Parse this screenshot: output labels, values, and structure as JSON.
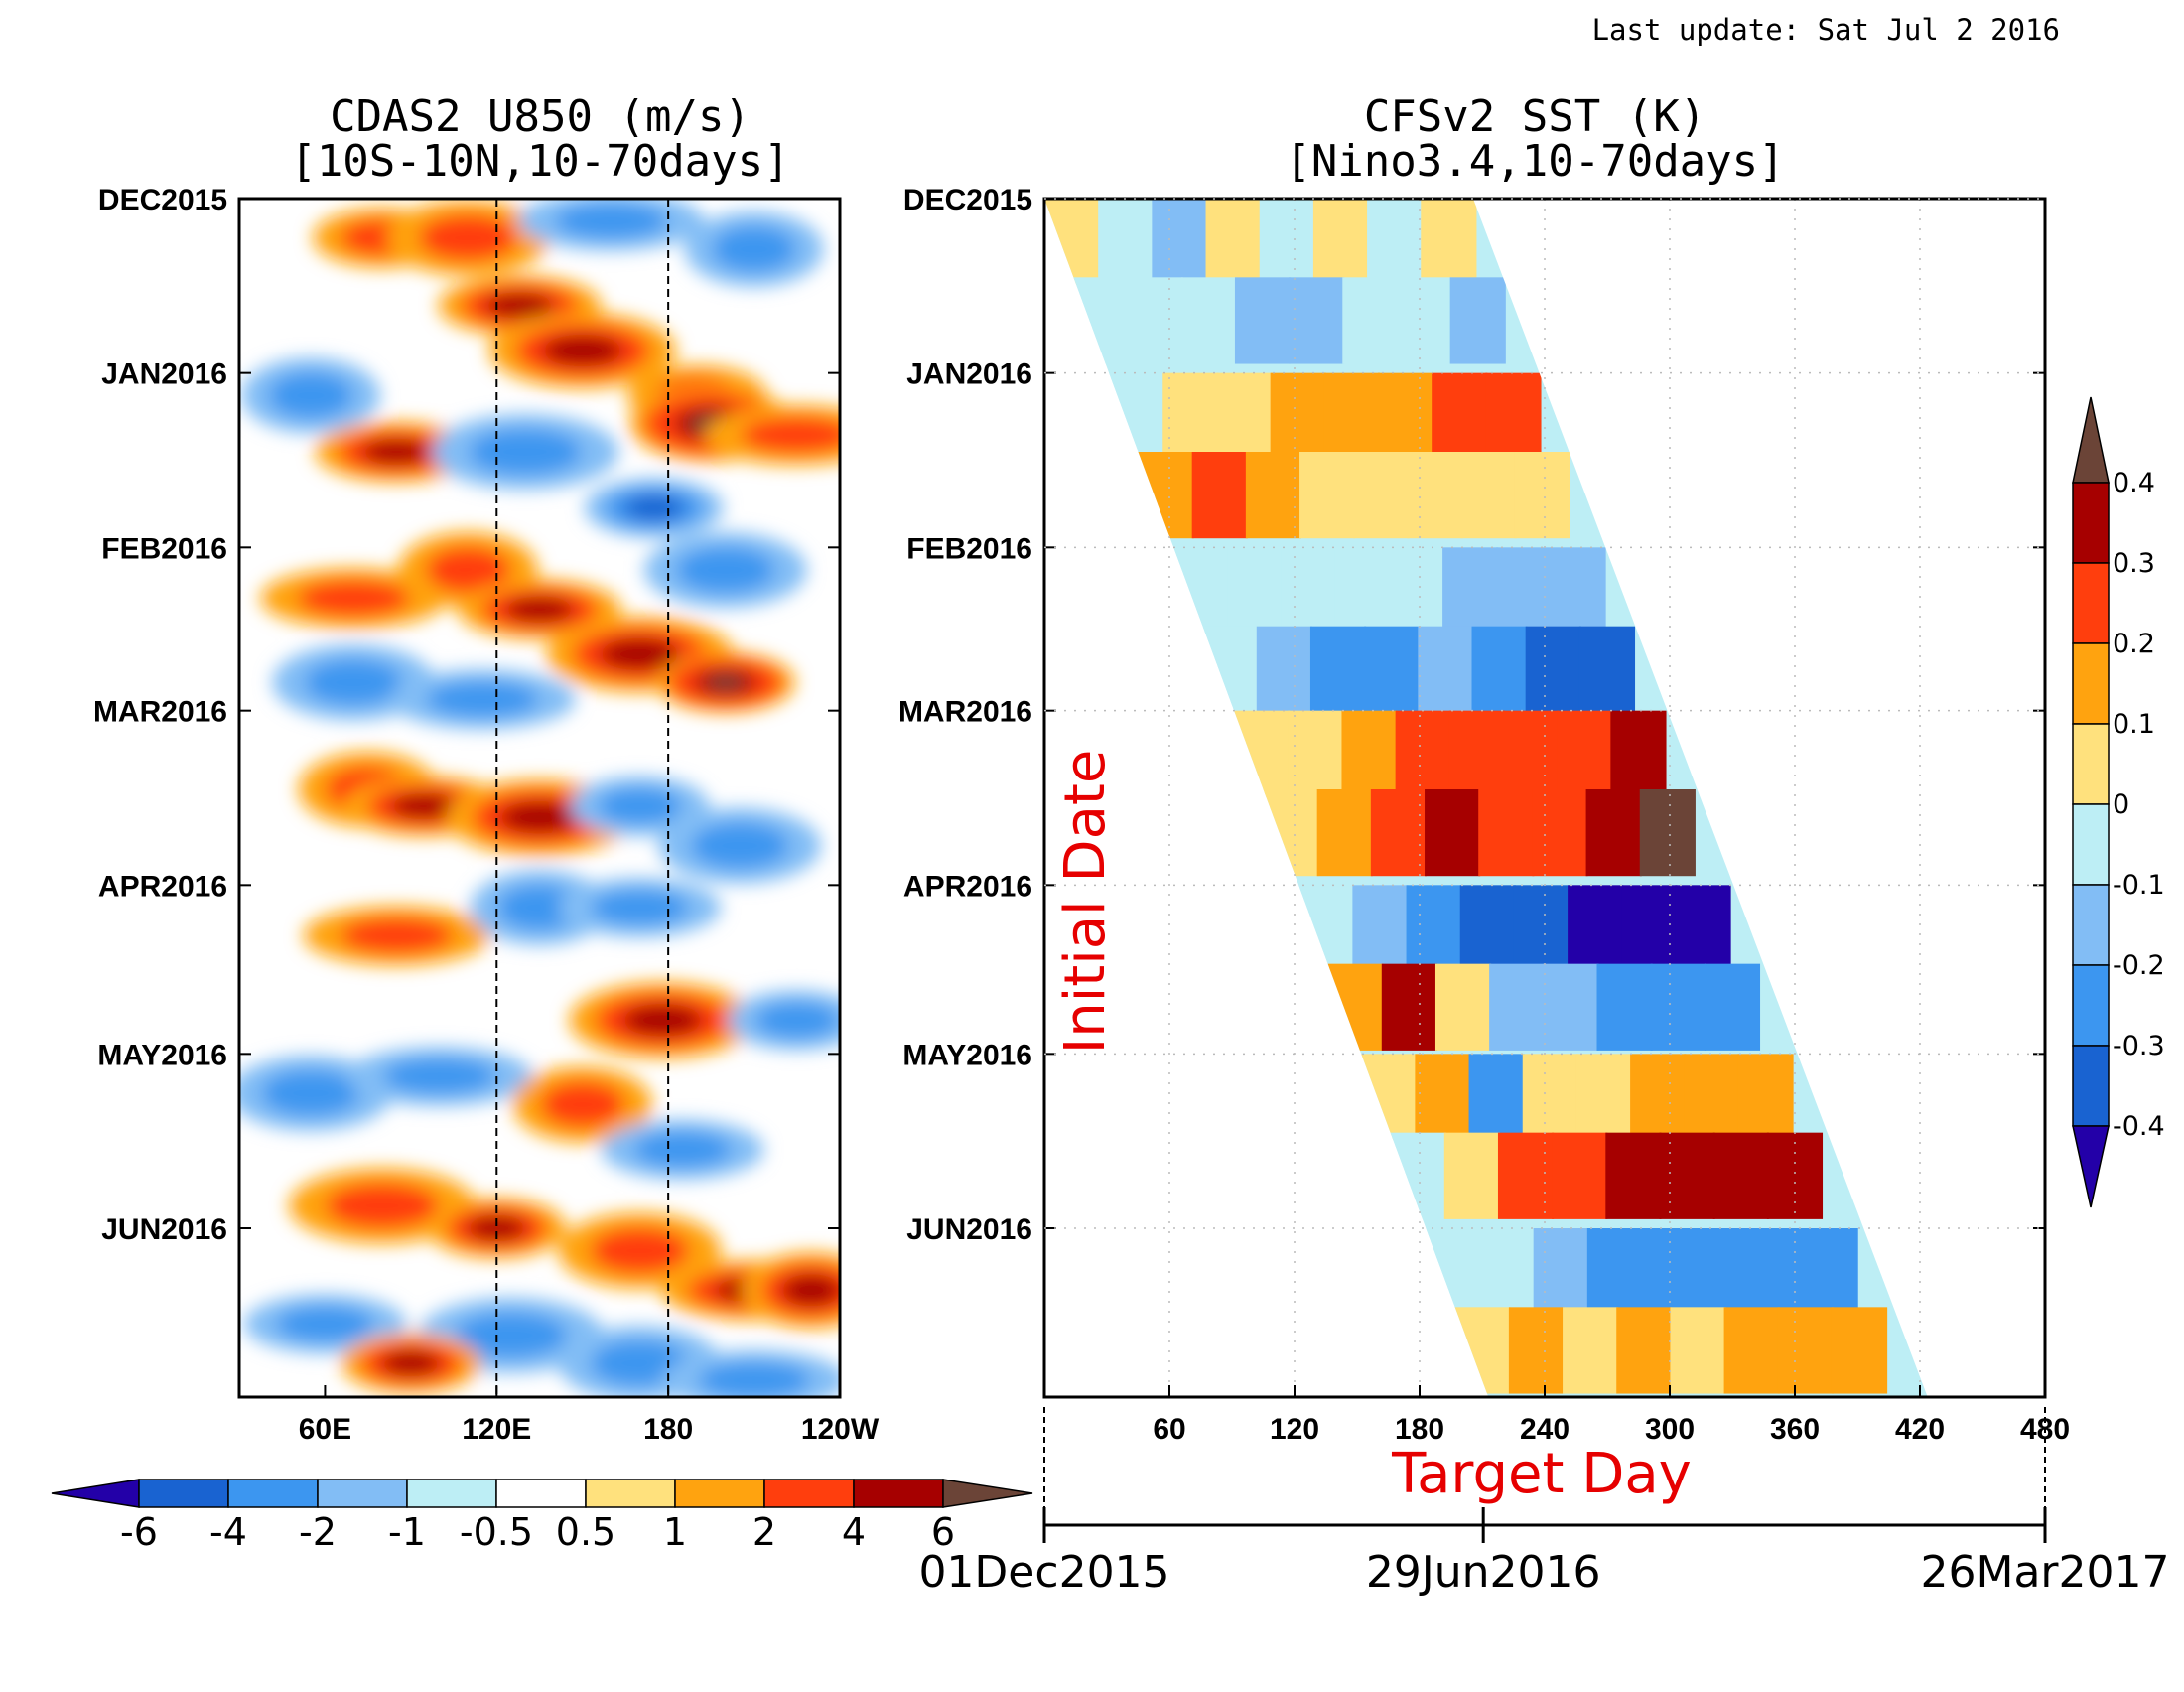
{
  "last_update": "Last update: Sat Jul 2 2016",
  "colors": {
    "scale": [
      "#2300a8",
      "#1963d1",
      "#3c96f0",
      "#82bdf5",
      "#bdeef5",
      "#ffffff",
      "#ffe17d",
      "#ffa30f",
      "#ff3e0d",
      "#a60000",
      "#6b4437"
    ],
    "sst_scale": [
      "#2300a8",
      "#1963d1",
      "#3c96f0",
      "#82bdf5",
      "#bdeef5",
      "#ffe17d",
      "#ffa30f",
      "#ff3e0d",
      "#a60000",
      "#6b4437"
    ]
  },
  "chart_data": [
    {
      "type": "heatmap",
      "title_line1": "CDAS2 U850 (m/s)",
      "title_line2": "[10S-10N,10-70days]",
      "y_ticks": [
        "DEC2015",
        "JAN2016",
        "FEB2016",
        "MAR2016",
        "APR2016",
        "MAY2016",
        "JUN2016"
      ],
      "y_range": [
        "2015-12-01",
        "2016-07-01"
      ],
      "x_ticks": [
        "60E",
        "120E",
        "180",
        "120W"
      ],
      "x_range_deg_east": [
        30,
        240
      ],
      "reference_lines_deg_east": [
        120,
        180
      ],
      "colorbar_levels": [
        "-6",
        "-4",
        "-2",
        "-1",
        "-0.5",
        "0.5",
        "1",
        "2",
        "4",
        "6"
      ],
      "anomaly_features": [
        {
          "lon_deg_east": 80,
          "date": "2015-12-08",
          "value": 2
        },
        {
          "lon_deg_east": 110,
          "date": "2015-12-08",
          "value": 2
        },
        {
          "lon_deg_east": 160,
          "date": "2015-12-05",
          "value": -2
        },
        {
          "lon_deg_east": 210,
          "date": "2015-12-10",
          "value": -2
        },
        {
          "lon_deg_east": 128,
          "date": "2015-12-20",
          "value": 4
        },
        {
          "lon_deg_east": 150,
          "date": "2015-12-28",
          "value": 4
        },
        {
          "lon_deg_east": 190,
          "date": "2016-01-05",
          "value": 2
        },
        {
          "lon_deg_east": 195,
          "date": "2016-01-10",
          "value": 6
        },
        {
          "lon_deg_east": 225,
          "date": "2016-01-12",
          "value": 2
        },
        {
          "lon_deg_east": 55,
          "date": "2016-01-05",
          "value": -2
        },
        {
          "lon_deg_east": 85,
          "date": "2016-01-15",
          "value": 4
        },
        {
          "lon_deg_east": 130,
          "date": "2016-01-15",
          "value": -2
        },
        {
          "lon_deg_east": 175,
          "date": "2016-01-25",
          "value": -4
        },
        {
          "lon_deg_east": 200,
          "date": "2016-02-05",
          "value": -2
        },
        {
          "lon_deg_east": 70,
          "date": "2016-02-10",
          "value": 2
        },
        {
          "lon_deg_east": 110,
          "date": "2016-02-05",
          "value": 2
        },
        {
          "lon_deg_east": 135,
          "date": "2016-02-12",
          "value": 4
        },
        {
          "lon_deg_east": 170,
          "date": "2016-02-20",
          "value": 4
        },
        {
          "lon_deg_east": 200,
          "date": "2016-02-25",
          "value": 6
        },
        {
          "lon_deg_east": 70,
          "date": "2016-02-25",
          "value": -2
        },
        {
          "lon_deg_east": 115,
          "date": "2016-02-28",
          "value": -2
        },
        {
          "lon_deg_east": 75,
          "date": "2016-03-15",
          "value": 2
        },
        {
          "lon_deg_east": 95,
          "date": "2016-03-18",
          "value": 4
        },
        {
          "lon_deg_east": 135,
          "date": "2016-03-20",
          "value": 4
        },
        {
          "lon_deg_east": 170,
          "date": "2016-03-18",
          "value": -2
        },
        {
          "lon_deg_east": 205,
          "date": "2016-03-25",
          "value": -2
        },
        {
          "lon_deg_east": 85,
          "date": "2016-04-10",
          "value": 2
        },
        {
          "lon_deg_east": 135,
          "date": "2016-04-05",
          "value": -2
        },
        {
          "lon_deg_east": 170,
          "date": "2016-04-05",
          "value": -2
        },
        {
          "lon_deg_east": 178,
          "date": "2016-04-25",
          "value": 4
        },
        {
          "lon_deg_east": 225,
          "date": "2016-04-25",
          "value": -2
        },
        {
          "lon_deg_east": 55,
          "date": "2016-05-08",
          "value": -2
        },
        {
          "lon_deg_east": 100,
          "date": "2016-05-05",
          "value": -2
        },
        {
          "lon_deg_east": 150,
          "date": "2016-05-10",
          "value": 2
        },
        {
          "lon_deg_east": 185,
          "date": "2016-05-18",
          "value": -2
        },
        {
          "lon_deg_east": 80,
          "date": "2016-05-28",
          "value": 2
        },
        {
          "lon_deg_east": 120,
          "date": "2016-06-01",
          "value": 4
        },
        {
          "lon_deg_east": 170,
          "date": "2016-06-05",
          "value": 2
        },
        {
          "lon_deg_east": 210,
          "date": "2016-06-12",
          "value": 4
        },
        {
          "lon_deg_east": 230,
          "date": "2016-06-12",
          "value": 4
        },
        {
          "lon_deg_east": 60,
          "date": "2016-06-18",
          "value": -2
        },
        {
          "lon_deg_east": 125,
          "date": "2016-06-20",
          "value": -2
        },
        {
          "lon_deg_east": 90,
          "date": "2016-06-25",
          "value": 4
        },
        {
          "lon_deg_east": 170,
          "date": "2016-06-25",
          "value": -2
        },
        {
          "lon_deg_east": 210,
          "date": "2016-06-28",
          "value": -2
        }
      ]
    },
    {
      "type": "heatmap",
      "title_line1": "CFSv2 SST (K)",
      "title_line2": "[Nino3.4,10-70days]",
      "y_ticks": [
        "DEC2015",
        "JAN2016",
        "FEB2016",
        "MAR2016",
        "APR2016",
        "MAY2016",
        "JUN2016"
      ],
      "y_range": [
        "2015-12-01",
        "2016-07-01"
      ],
      "x_ticks": [
        "60",
        "120",
        "180",
        "240",
        "300",
        "360",
        "420",
        "480"
      ],
      "x_range": [
        0,
        480
      ],
      "x_label": "Target Day",
      "y_label": "Initial Date",
      "date_axis": {
        "labels": [
          "01Dec2015",
          "29Jun2016",
          "26Mar2017"
        ],
        "days": [
          0,
          211,
          481
        ]
      },
      "forecast_window_days": [
        0,
        240
      ],
      "colorbar_levels": [
        "0.4",
        "0.3",
        "0.2",
        "0.1",
        "0",
        "-0.1",
        "-0.2",
        "-0.3",
        "-0.4"
      ],
      "rows": [
        {
          "date": "2015-12-01",
          "values": [
            0.05,
            -0.05,
            -0.15,
            0.05,
            -0.05,
            0.05,
            -0.05,
            0.05
          ]
        },
        {
          "date": "2015-12-15",
          "values": [
            -0.05,
            -0.05,
            -0.05,
            -0.15,
            -0.15,
            -0.05,
            -0.05,
            -0.15
          ]
        },
        {
          "date": "2016-01-01",
          "values": [
            -0.05,
            0.05,
            0.05,
            0.15,
            0.15,
            0.15,
            0.25,
            0.25
          ]
        },
        {
          "date": "2016-01-15",
          "values": [
            0.15,
            0.25,
            0.15,
            0.05,
            0.05,
            0.05,
            0.05,
            0.05
          ]
        },
        {
          "date": "2016-02-01",
          "values": [
            -0.05,
            -0.05,
            -0.05,
            -0.05,
            -0.05,
            -0.15,
            -0.15,
            -0.15
          ]
        },
        {
          "date": "2016-02-15",
          "values": [
            -0.05,
            -0.15,
            -0.25,
            -0.25,
            -0.15,
            -0.25,
            -0.35,
            -0.35
          ]
        },
        {
          "date": "2016-03-01",
          "values": [
            0.05,
            0.05,
            0.15,
            0.25,
            0.25,
            0.25,
            0.25,
            0.35
          ]
        },
        {
          "date": "2016-03-15",
          "values": [
            0.05,
            0.15,
            0.25,
            0.35,
            0.25,
            0.25,
            0.35,
            0.45
          ]
        },
        {
          "date": "2016-04-01",
          "values": [
            -0.05,
            -0.15,
            -0.25,
            -0.35,
            -0.35,
            -0.45,
            -0.45,
            -0.45
          ]
        },
        {
          "date": "2016-04-15",
          "values": [
            0.15,
            0.35,
            0.05,
            -0.15,
            -0.15,
            -0.25,
            -0.25,
            -0.25
          ]
        },
        {
          "date": "2016-05-01",
          "values": [
            0.05,
            0.15,
            -0.25,
            0.05,
            0.05,
            0.15,
            0.15,
            0.15
          ]
        },
        {
          "date": "2016-05-15",
          "values": [
            -0.05,
            0.05,
            0.25,
            0.25,
            0.35,
            0.35,
            0.35,
            0.35
          ]
        },
        {
          "date": "2016-06-01",
          "values": [
            -0.05,
            -0.05,
            -0.15,
            -0.25,
            -0.25,
            -0.25,
            -0.25,
            -0.25
          ]
        },
        {
          "date": "2016-06-15",
          "values": [
            0.05,
            0.15,
            0.05,
            0.15,
            0.05,
            0.15,
            0.15,
            0.15
          ]
        }
      ]
    }
  ]
}
